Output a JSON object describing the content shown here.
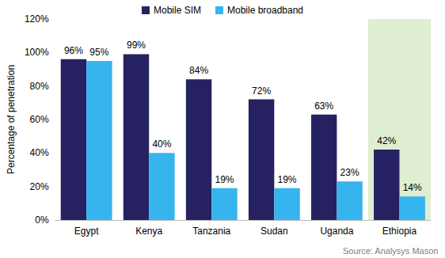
{
  "chart_data": {
    "type": "bar",
    "categories": [
      "Egypt",
      "Kenya",
      "Tanzania",
      "Sudan",
      "Uganda",
      "Ethiopia"
    ],
    "series": [
      {
        "name": "Mobile SIM",
        "color": "#262262",
        "values": [
          96,
          99,
          84,
          72,
          63,
          42
        ],
        "value_labels": [
          "96%",
          "99%",
          "84%",
          "72%",
          "63%",
          "42%"
        ]
      },
      {
        "name": "Mobile broadband",
        "color": "#35b4ee",
        "values": [
          95,
          40,
          19,
          19,
          23,
          14
        ],
        "value_labels": [
          "95%",
          "40%",
          "19%",
          "19%",
          "23%",
          "14%"
        ]
      }
    ],
    "y_label": "Percentage of penetration",
    "ylim": [
      0,
      120
    ],
    "yticks": [
      {
        "value": 0,
        "label": "0%"
      },
      {
        "value": 20,
        "label": "20%"
      },
      {
        "value": 40,
        "label": "40%"
      },
      {
        "value": 60,
        "label": "60%"
      },
      {
        "value": 80,
        "label": "80%"
      },
      {
        "value": 100,
        "label": "100%"
      },
      {
        "value": 120,
        "label": "120%"
      }
    ],
    "annotations": [
      "Source: Analysys Mason"
    ],
    "legend": "top",
    "grid": false,
    "data_labels": true
  }
}
